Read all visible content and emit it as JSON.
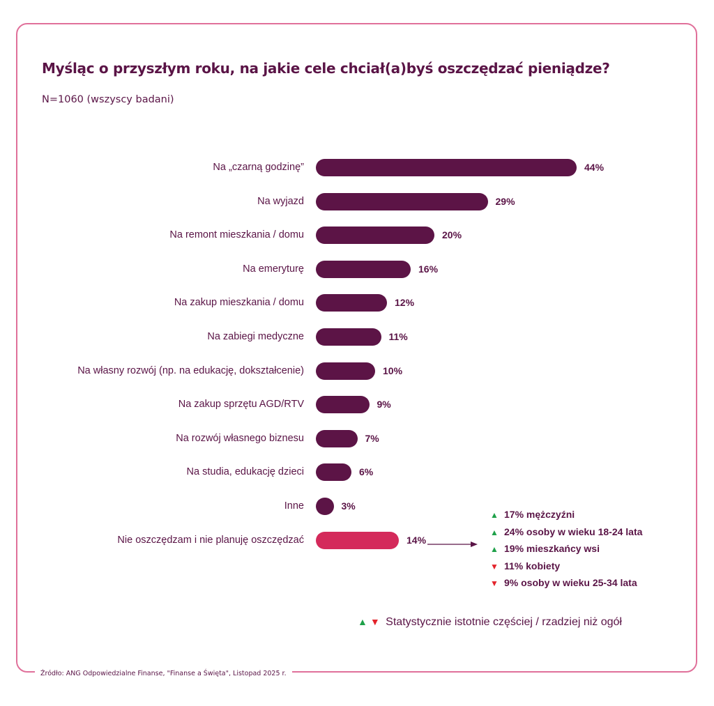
{
  "title": "Myśląc o przyszłym roku, na jakie cele chciał(a)byś oszczędzać pieniądze?",
  "subtitle": "N=1060 (wszyscy badani)",
  "source": "Źródło: ANG Odpowiedzialne Finanse, \"Finanse a Święta\", Listopad 2025 r.",
  "colors": {
    "bar": "#5c1446",
    "highlight": "#d42a5b",
    "frame": "#e0709a",
    "up": "#1fa14a",
    "down": "#e3232b",
    "text": "#5a1446"
  },
  "chart_data": {
    "type": "bar",
    "orientation": "horizontal",
    "title": "Myśląc o przyszłym roku, na jakie cele chciał(a)byś oszczędzać pieniądze?",
    "subtitle": "N=1060 (wszyscy badani)",
    "xlabel": "",
    "ylabel": "",
    "unit": "%",
    "xlim": [
      0,
      44
    ],
    "grid": false,
    "categories": [
      "Na „czarną godzinę”",
      "Na wyjazd",
      "Na remont mieszkania / domu",
      "Na emeryturę",
      "Na zakup mieszkania / domu",
      "Na zabiegi medyczne",
      "Na własny rozwój (np. na edukację, dokształcenie)",
      "Na zakup sprzętu AGD/RTV",
      "Na rozwój własnego biznesu",
      "Na studia, edukację dzieci",
      "Inne",
      "Nie oszczędzam i nie planuję oszczędzać"
    ],
    "values": [
      44,
      29,
      20,
      16,
      12,
      11,
      10,
      9,
      7,
      6,
      3,
      14
    ],
    "value_labels": [
      "44%",
      "29%",
      "20%",
      "16%",
      "12%",
      "11%",
      "10%",
      "9%",
      "7%",
      "6%",
      "3%",
      "14%"
    ],
    "highlighted": [
      false,
      false,
      false,
      false,
      false,
      false,
      false,
      false,
      false,
      false,
      false,
      true
    ],
    "annotation": {
      "target": "Nie oszczędzam i nie planuję oszczędzać",
      "items": [
        {
          "direction": "up",
          "text": "17% mężczyźni"
        },
        {
          "direction": "up",
          "text": "24% osoby w wieku 18-24 lata"
        },
        {
          "direction": "up",
          "text": "19% mieszkańcy wsi"
        },
        {
          "direction": "down",
          "text": "11% kobiety"
        },
        {
          "direction": "down",
          "text": "9% osoby w wieku 25-34 lata"
        }
      ]
    },
    "legend": {
      "text": "Statystycznie istotnie częściej / rzadziej niż ogół",
      "placement": "bottom-right"
    }
  },
  "glyphs": {
    "up": "▲",
    "down": "▼"
  }
}
